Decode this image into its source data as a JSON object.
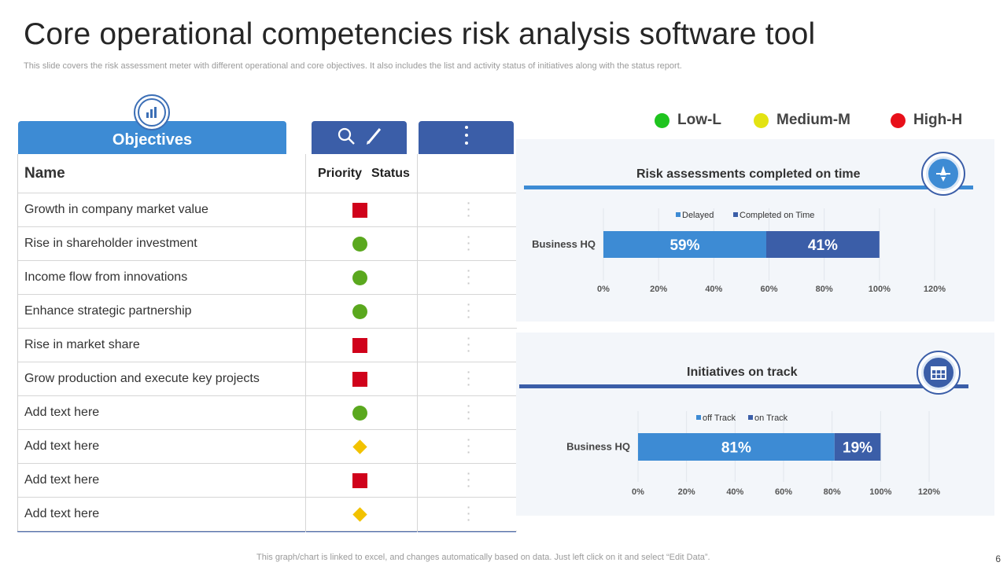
{
  "title": "Core operational competencies risk analysis software tool",
  "subtitle": "This slide covers the risk assessment meter with different operational and core objectives. It also includes the list and activity status of initiatives along with the status report.",
  "table": {
    "tab_label": "Objectives",
    "tools_icons": [
      "search-icon",
      "pencil-icon"
    ],
    "more_icon": "vertical-dots-icon",
    "header": {
      "name": "Name",
      "priority": "Priority",
      "status": "Status"
    },
    "rows": [
      {
        "label": "Growth in company market value",
        "priority": "high",
        "marker": "square"
      },
      {
        "label": "Rise in shareholder investment",
        "priority": "low",
        "marker": "circle"
      },
      {
        "label": "Income flow from innovations",
        "priority": "low",
        "marker": "circle"
      },
      {
        "label": "Enhance strategic partnership",
        "priority": "low",
        "marker": "circle"
      },
      {
        "label": "Rise in market share",
        "priority": "high",
        "marker": "square"
      },
      {
        "label": "Grow production and execute key projects",
        "priority": "high",
        "marker": "square"
      },
      {
        "label": "Add text here",
        "priority": "low",
        "marker": "circle"
      },
      {
        "label": "Add text here",
        "priority": "medium",
        "marker": "diamond"
      },
      {
        "label": "Add text here",
        "priority": "high",
        "marker": "square"
      },
      {
        "label": "Add text here",
        "priority": "medium",
        "marker": "diamond"
      }
    ]
  },
  "legend": [
    {
      "label": "Low-L",
      "color": "#1fc41f"
    },
    {
      "label": "Medium-M",
      "color": "#e3e312"
    },
    {
      "label": "High-H",
      "color": "#e8101a"
    }
  ],
  "colors": {
    "light_blue": "#3d8bd4",
    "dark_blue": "#3b5ea8",
    "high": "#d0021b",
    "low": "#5aa81e",
    "medium": "#f2c200"
  },
  "chart_data": [
    {
      "type": "bar",
      "orientation": "horizontal",
      "stacked": true,
      "title": "Risk assessments  completed on time",
      "categories": [
        "Business HQ"
      ],
      "series": [
        {
          "name": "Delayed",
          "values": [
            59
          ],
          "color": "#3d8bd4"
        },
        {
          "name": "Completed on Time",
          "values": [
            41
          ],
          "color": "#3b5ea8"
        }
      ],
      "data_labels": [
        "59%",
        "41%"
      ],
      "xlim": [
        0,
        120
      ],
      "ticks": [
        "0%",
        "20%",
        "40%",
        "60%",
        "80%",
        "100%",
        "120%"
      ],
      "legend_position": "top"
    },
    {
      "type": "bar",
      "orientation": "horizontal",
      "stacked": true,
      "title": "Initiatives on track",
      "categories": [
        "Business HQ"
      ],
      "series": [
        {
          "name": "off Track",
          "values": [
            81
          ],
          "color": "#3d8bd4"
        },
        {
          "name": "on Track",
          "values": [
            19
          ],
          "color": "#3b5ea8"
        }
      ],
      "data_labels": [
        "81%",
        "19%"
      ],
      "xlim": [
        0,
        120
      ],
      "ticks": [
        "0%",
        "20%",
        "40%",
        "60%",
        "80%",
        "100%",
        "120%"
      ],
      "legend_position": "top"
    }
  ],
  "footer": "This graph/chart is linked to excel,  and changes automatically based on data. Just left click on it and select “Edit Data”.",
  "page_number": "6"
}
